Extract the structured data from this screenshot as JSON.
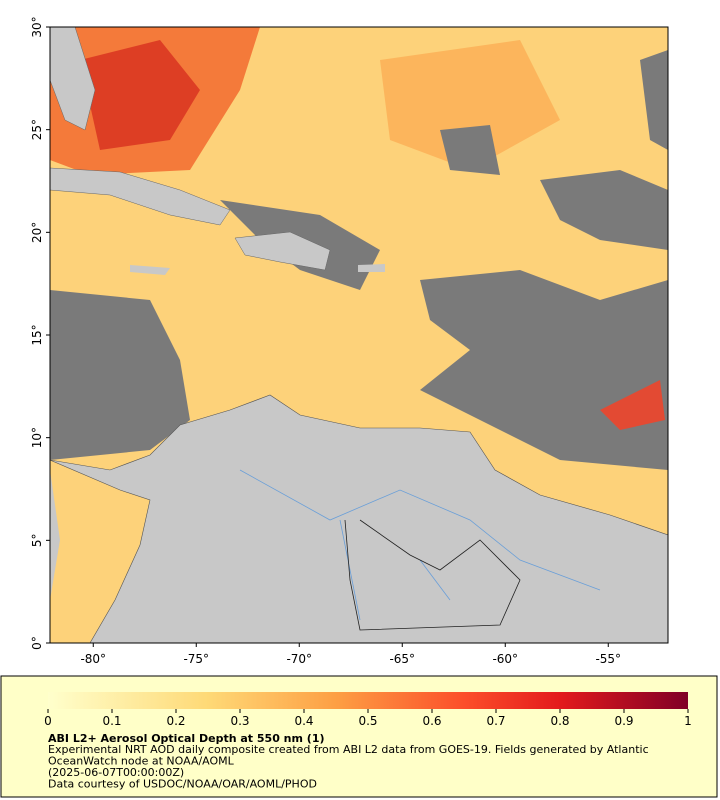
{
  "map": {
    "xlim": [
      -82.1,
      -52.1
    ],
    "ylim": [
      0,
      30
    ],
    "xticks": [
      {
        "value": -80,
        "label": "-80°"
      },
      {
        "value": -75,
        "label": "-75°"
      },
      {
        "value": -70,
        "label": "-70°"
      },
      {
        "value": -65,
        "label": "-65°"
      },
      {
        "value": -60,
        "label": "-60°"
      },
      {
        "value": -55,
        "label": "-55°"
      }
    ],
    "yticks": [
      {
        "value": 0,
        "label": "0°"
      },
      {
        "value": 5,
        "label": "5°"
      },
      {
        "value": 10,
        "label": "10°"
      },
      {
        "value": 15,
        "label": "15°"
      },
      {
        "value": 20,
        "label": "20°"
      },
      {
        "value": 25,
        "label": "25°"
      },
      {
        "value": 30,
        "label": "30°"
      }
    ]
  },
  "colorbar": {
    "lim": [
      0,
      1
    ],
    "ticks": [
      0,
      0.1,
      0.2,
      0.3,
      0.4,
      0.5,
      0.6,
      0.7,
      0.8,
      0.9,
      1
    ]
  },
  "caption": {
    "title": "ABI L2+ Aerosol Optical Depth at 550 nm (1)",
    "lines": [
      "Experimental NRT AOD daily composite created from ABI L2 data from GOES-19. Fields generated by Atlantic",
      "OceanWatch node at NOAA/AOML",
      "(2025-06-07T00:00:00Z)",
      "Data courtesy of USDOC/NOAA/OAR/AOML/PHOD"
    ]
  }
}
